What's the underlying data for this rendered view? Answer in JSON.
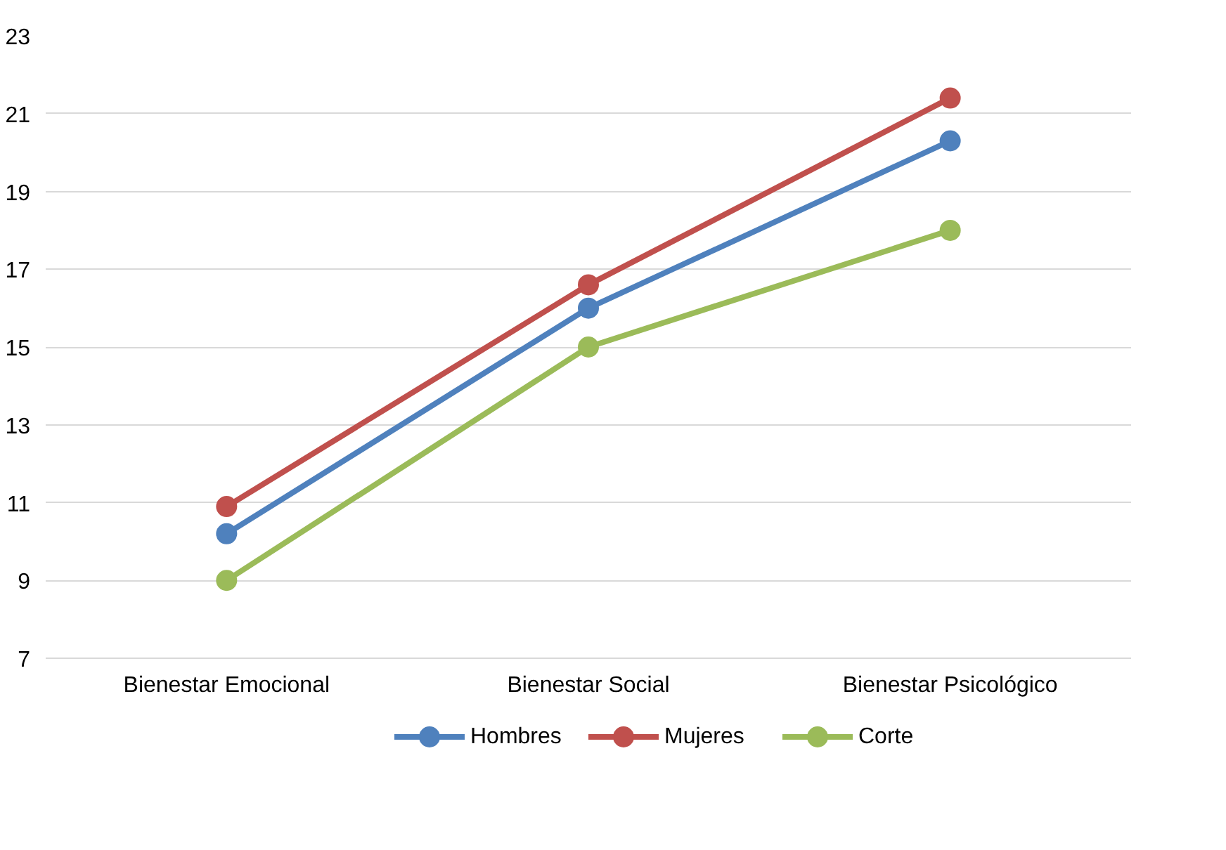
{
  "chart_data": {
    "type": "line",
    "categories": [
      "Bienestar Emocional",
      "Bienestar Social",
      "Bienestar Psicológico"
    ],
    "series": [
      {
        "name": "Hombres",
        "color": "#4f81bd",
        "values": [
          10.2,
          16,
          20.3
        ]
      },
      {
        "name": "Mujeres",
        "color": "#c0504d",
        "values": [
          10.9,
          16.6,
          21.4
        ]
      },
      {
        "name": "Corte",
        "color": "#9bbb59",
        "values": [
          9,
          15,
          18
        ]
      }
    ],
    "ylim": [
      7,
      23
    ],
    "yticks": [
      7,
      9,
      11,
      13,
      15,
      17,
      19,
      21,
      23
    ],
    "grid": "y",
    "legend": "bottom",
    "marker": "circle",
    "line_style": "solid"
  }
}
